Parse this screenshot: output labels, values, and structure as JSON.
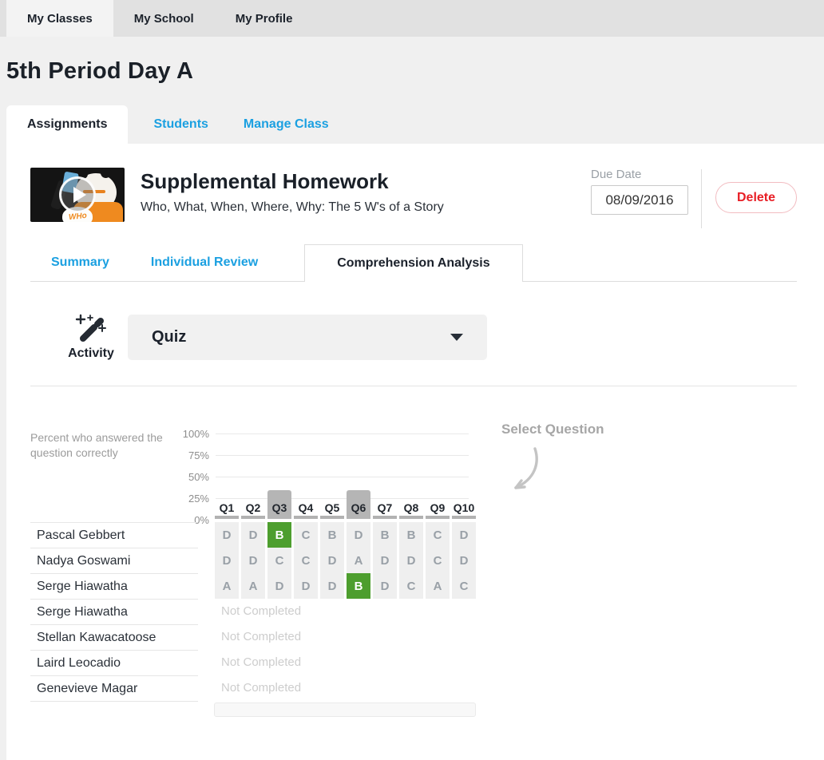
{
  "top_nav": {
    "tabs": [
      {
        "label": "My Classes",
        "active": true
      },
      {
        "label": "My School",
        "active": false
      },
      {
        "label": "My Profile",
        "active": false
      }
    ]
  },
  "page": {
    "title": "5th Period Day A"
  },
  "class_tabs": [
    {
      "label": "Assignments",
      "active": true
    },
    {
      "label": "Students",
      "active": false
    },
    {
      "label": "Manage Class",
      "active": false
    }
  ],
  "assignment": {
    "title": "Supplemental Homework",
    "subtitle": "Who, What, When, Where, Why: The 5 W's of a Story",
    "thumbnail_text": "WHo",
    "due_date_label": "Due Date",
    "due_date_value": "08/09/2016",
    "delete_label": "Delete"
  },
  "detail_tabs": [
    {
      "label": "Summary",
      "active": false
    },
    {
      "label": "Individual Review",
      "active": false
    },
    {
      "label": "Comprehension Analysis",
      "active": true
    }
  ],
  "activity": {
    "label": "Activity",
    "selected": "Quiz"
  },
  "analysis": {
    "axis_label": "Percent who answered the question correctly",
    "select_question_hint": "Select Question",
    "not_completed_label": "Not Completed"
  },
  "colors": {
    "accent_blue": "#1ba0e1",
    "correct_green": "#4d9e2e",
    "delete_red": "#e81e25",
    "bar_gray": "#b5b5b5"
  },
  "chart_data": {
    "type": "bar",
    "title": "Percent who answered the question correctly",
    "categories": [
      "Q1",
      "Q2",
      "Q3",
      "Q4",
      "Q5",
      "Q6",
      "Q7",
      "Q8",
      "Q9",
      "Q10"
    ],
    "values": [
      0,
      0,
      33,
      0,
      0,
      33,
      0,
      0,
      0,
      0
    ],
    "ylim": [
      0,
      100
    ],
    "yticks": [
      "100%",
      "75%",
      "50%",
      "25%",
      "0%"
    ],
    "grid": true,
    "highlighted_questions": [
      "Q3",
      "Q6"
    ],
    "students": [
      {
        "name": "Pascal Gebbert",
        "completed": true,
        "answers": [
          "D",
          "D",
          "B",
          "C",
          "B",
          "D",
          "B",
          "B",
          "C",
          "D"
        ],
        "correct_questions": [
          3
        ]
      },
      {
        "name": "Nadya Goswami",
        "completed": true,
        "answers": [
          "D",
          "D",
          "C",
          "C",
          "D",
          "A",
          "D",
          "D",
          "C",
          "D"
        ],
        "correct_questions": []
      },
      {
        "name": "Serge Hiawatha",
        "completed": true,
        "answers": [
          "A",
          "A",
          "D",
          "D",
          "D",
          "B",
          "D",
          "C",
          "A",
          "C"
        ],
        "correct_questions": [
          6
        ]
      },
      {
        "name": "Serge Hiawatha",
        "completed": false,
        "answers": [],
        "correct_questions": []
      },
      {
        "name": "Stellan Kawacatoose",
        "completed": false,
        "answers": [],
        "correct_questions": []
      },
      {
        "name": "Laird Leocadio",
        "completed": false,
        "answers": [],
        "correct_questions": []
      },
      {
        "name": "Genevieve Magar",
        "completed": false,
        "answers": [],
        "correct_questions": []
      }
    ]
  }
}
